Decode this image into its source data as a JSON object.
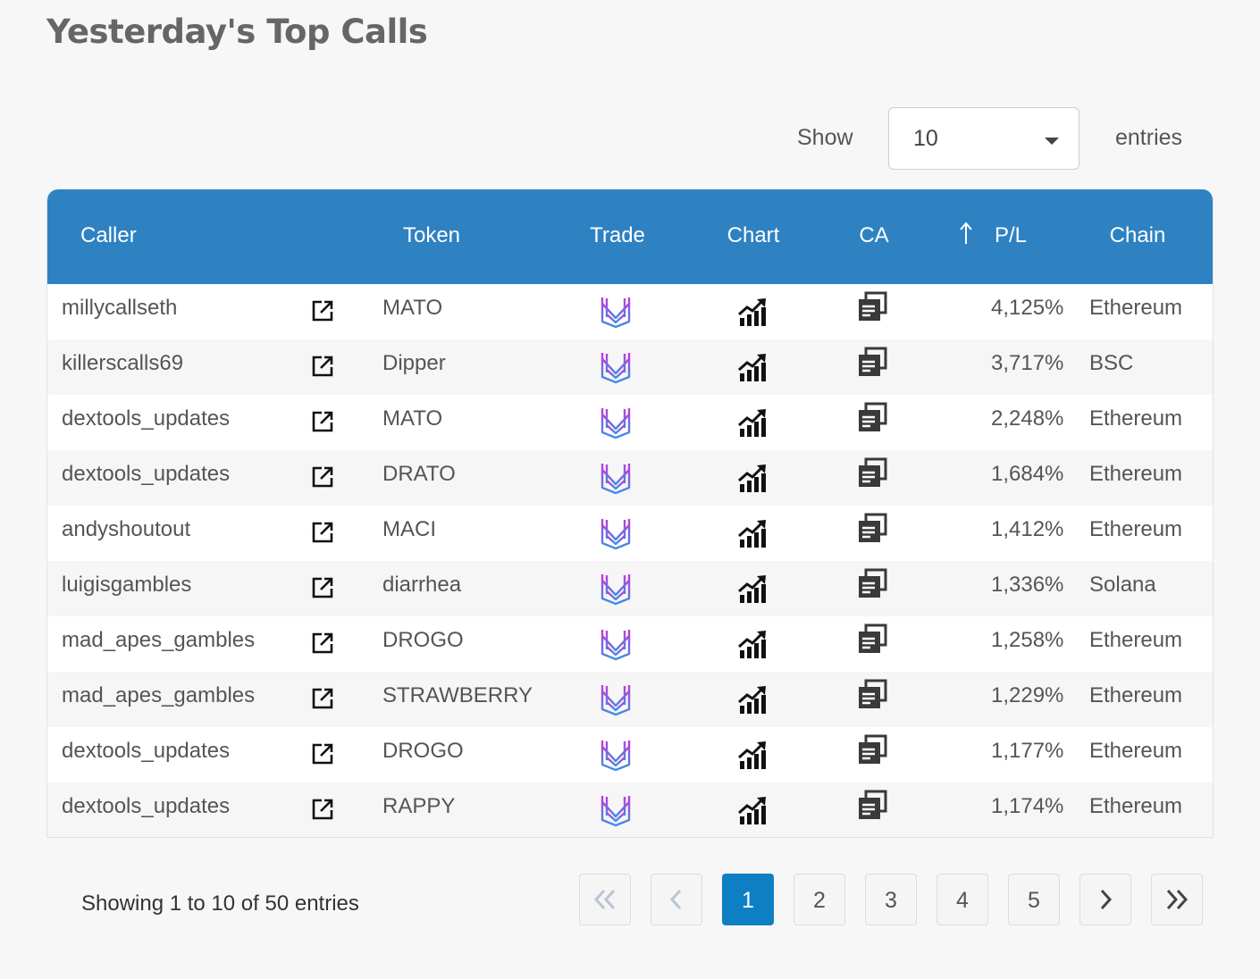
{
  "page": {
    "title": "Yesterday's Top Calls"
  },
  "length_menu": {
    "show_label": "Show",
    "selected": "10",
    "entries_label": "entries"
  },
  "table": {
    "columns": [
      "Caller",
      "Token",
      "Trade",
      "Chart",
      "CA",
      "P/L",
      "Chain"
    ],
    "sorted_column": "P/L",
    "sort_icon": "arrow-up-icon",
    "colors": {
      "header_bg": "#2e82c2",
      "active_page": "#0f7fc4"
    },
    "rows": [
      {
        "caller": "millycallseth",
        "token": "MATO",
        "pl": "4,125%",
        "chain": "Ethereum"
      },
      {
        "caller": "killerscalls69",
        "token": "Dipper",
        "pl": "3,717%",
        "chain": "BSC"
      },
      {
        "caller": "dextools_updates",
        "token": "MATO",
        "pl": "2,248%",
        "chain": "Ethereum"
      },
      {
        "caller": "dextools_updates",
        "token": "DRATO",
        "pl": "1,684%",
        "chain": "Ethereum"
      },
      {
        "caller": "andyshoutout",
        "token": "MACI",
        "pl": "1,412%",
        "chain": "Ethereum"
      },
      {
        "caller": "luigisgambles",
        "token": "diarrhea",
        "pl": "1,336%",
        "chain": "Solana"
      },
      {
        "caller": "mad_apes_gambles",
        "token": "DROGO",
        "pl": "1,258%",
        "chain": "Ethereum"
      },
      {
        "caller": "mad_apes_gambles",
        "token": "STRAWBERRY",
        "pl": "1,229%",
        "chain": "Ethereum"
      },
      {
        "caller": "dextools_updates",
        "token": "DROGO",
        "pl": "1,177%",
        "chain": "Ethereum"
      },
      {
        "caller": "dextools_updates",
        "token": "RAPPY",
        "pl": "1,174%",
        "chain": "Ethereum"
      }
    ],
    "row_icons": {
      "link": "external-link-icon",
      "trade": "trade-logo-icon",
      "chart": "chart-icon",
      "ca": "copy-icon"
    }
  },
  "footer": {
    "info": "Showing 1 to 10 of 50 entries",
    "pages": [
      "1",
      "2",
      "3",
      "4",
      "5"
    ],
    "current_page": "1",
    "nav_icons": [
      "first-page-icon",
      "previous-page-icon",
      "next-page-icon",
      "last-page-icon"
    ]
  }
}
